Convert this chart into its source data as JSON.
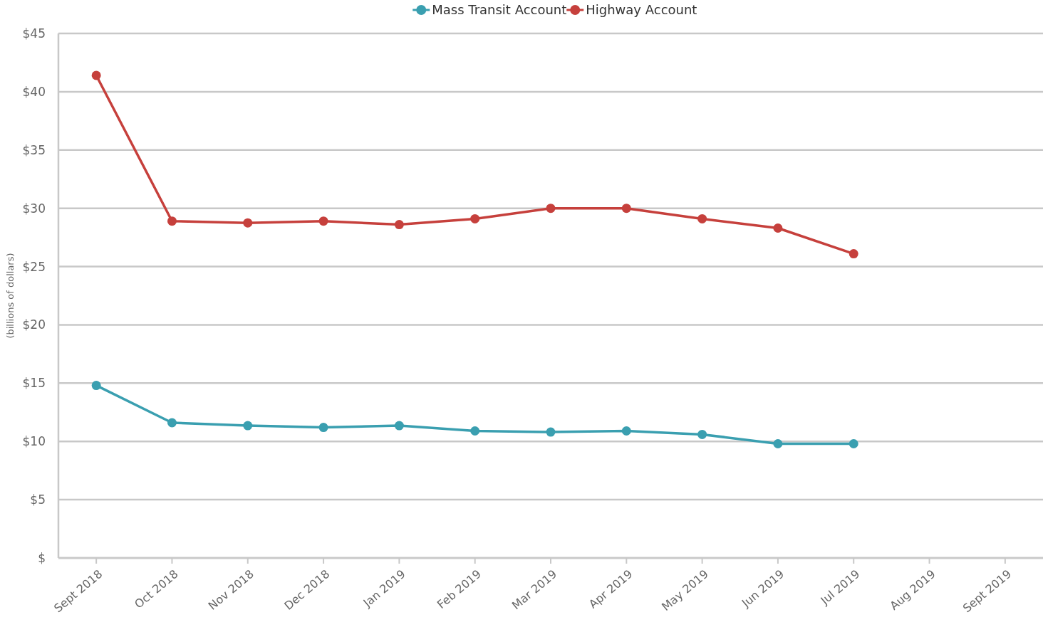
{
  "chart_data": {
    "type": "line",
    "ylabel": "(billions of dollars)",
    "categories": [
      "Sept 2018",
      "Oct 2018",
      "Nov 2018",
      "Dec 2018",
      "Jan 2019",
      "Feb 2019",
      "Mar 2019",
      "Apr 2019",
      "May 2019",
      "Jun 2019",
      "Jul 2019",
      "Aug 2019",
      "Sept 2019"
    ],
    "series": [
      {
        "name": "Mass Transit Account",
        "color": "#3a9fb0",
        "values": [
          14.8,
          11.6,
          11.35,
          11.2,
          11.35,
          10.9,
          10.8,
          10.9,
          10.6,
          9.8,
          9.8,
          null,
          null
        ]
      },
      {
        "name": "Highway Account",
        "color": "#c6403c",
        "values": [
          41.4,
          28.9,
          28.75,
          28.9,
          28.6,
          29.1,
          30.0,
          30.0,
          29.1,
          28.3,
          26.1,
          null,
          null
        ]
      }
    ],
    "ylim": [
      0,
      45
    ],
    "yticks": [
      {
        "value": 0,
        "label": "$"
      },
      {
        "value": 5,
        "label": "$5"
      },
      {
        "value": 10,
        "label": "$10"
      },
      {
        "value": 15,
        "label": "$15"
      },
      {
        "value": 20,
        "label": "$20"
      },
      {
        "value": 25,
        "label": "$25"
      },
      {
        "value": 30,
        "label": "$30"
      },
      {
        "value": 35,
        "label": "$35"
      },
      {
        "value": 40,
        "label": "$40"
      },
      {
        "value": 45,
        "label": "$45"
      }
    ],
    "grid": "y",
    "legend": "top",
    "marker": "circle",
    "line_style": "solid"
  }
}
